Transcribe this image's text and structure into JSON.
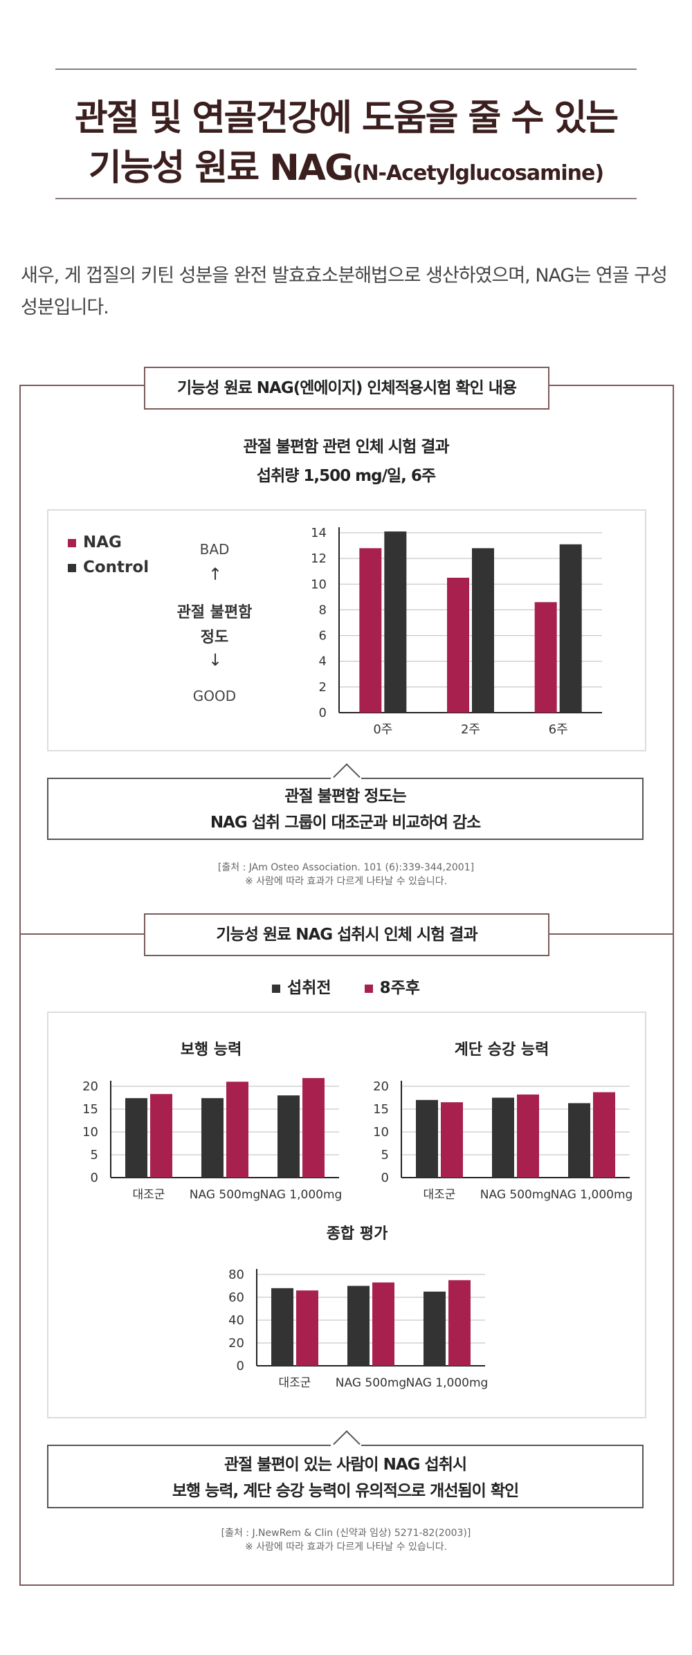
{
  "header": {
    "title_line1": "관절 및 연골건강에 도움을 줄 수 있는",
    "title_line2_main": "기능성 원료 NAG",
    "title_line2_sub": "(N-Acetylglucosamine)"
  },
  "intro": "새우, 게 껍질의 키틴 성분을 완전 발효효소분해법으로 생산하였으며, NAG는 연골 구성성분입니다.",
  "section1": {
    "box_label": "기능성 원료 NAG(엔에이지) 인체적용시험 확인 내용",
    "heading1": "관절 불편함 관련 인체 시험 결과",
    "heading2": "섭취량 1,500 mg/일, 6주",
    "side_top": "BAD",
    "side_mid1": "관절 불편함",
    "side_mid2": "정도",
    "side_bottom": "GOOD",
    "callout1": "관절 불편함 정도는",
    "callout2": "NAG 섭취 그룹이 대조군과 비교하여 감소",
    "source1": "[출처 : JAm Osteo Association. 101 (6):339-344,2001]",
    "source2": "※ 사람에 따라 효과가 다르게 나타날 수 있습니다."
  },
  "section2": {
    "box_label": "기능성 원료 NAG 섭취시 인체 시험 결과",
    "callout1": "관절 불편이 있는 사람이 NAG 섭취시",
    "callout2": "보행 능력, 계단 승강 능력이 유의적으로 개선됨이 확인",
    "source1": "[출처 : J.NewRem & Clin (신약과 임상) 5271-82(2003)]",
    "source2": "※ 사람에 따라 효과가 다르게 나타날 수 있습니다."
  },
  "colors": {
    "accent": "#a8214e",
    "dark": "#333333"
  },
  "chart_data": [
    {
      "type": "bar",
      "title": "",
      "categories": [
        "0주",
        "2주",
        "6주"
      ],
      "series": [
        {
          "name": "NAG",
          "values": [
            12.8,
            10.5,
            8.6
          ],
          "color": "#a8214e"
        },
        {
          "name": "Control",
          "values": [
            14.1,
            12.8,
            13.1
          ],
          "color": "#333333"
        }
      ],
      "ylim": [
        0,
        14
      ],
      "yticks": [
        "0",
        "2",
        "4",
        "6",
        "8",
        "10",
        "12",
        "14"
      ],
      "legend": "top-left"
    },
    {
      "type": "bar",
      "title": "보행 능력",
      "categories": [
        "대조군",
        "NAG 500mg",
        "NAG 1,000mg"
      ],
      "series": [
        {
          "name": "섭취전",
          "values": [
            17.4,
            17.4,
            18
          ],
          "color": "#333333"
        },
        {
          "name": "8주후",
          "values": [
            18.3,
            21,
            21.8
          ],
          "color": "#a8214e"
        }
      ],
      "ylim": [
        0,
        20
      ],
      "yticks": [
        "0",
        "5",
        "10",
        "15",
        "20"
      ],
      "legend": "top"
    },
    {
      "type": "bar",
      "title": "계단 승강 능력",
      "categories": [
        "대조군",
        "NAG 500mg",
        "NAG 1,000mg"
      ],
      "series": [
        {
          "name": "섭취전",
          "values": [
            17,
            17.5,
            16.3
          ],
          "color": "#333333"
        },
        {
          "name": "8주후",
          "values": [
            16.5,
            18.2,
            18.7
          ],
          "color": "#a8214e"
        }
      ],
      "ylim": [
        0,
        20
      ],
      "yticks": [
        "0",
        "5",
        "10",
        "15",
        "20"
      ],
      "legend": "top"
    },
    {
      "type": "bar",
      "title": "종합 평가",
      "categories": [
        "대조군",
        "NAG 500mg",
        "NAG 1,000mg"
      ],
      "series": [
        {
          "name": "섭취전",
          "values": [
            68,
            70,
            65
          ],
          "color": "#333333"
        },
        {
          "name": "8주후",
          "values": [
            66,
            73,
            75
          ],
          "color": "#a8214e"
        }
      ],
      "ylim": [
        0,
        80
      ],
      "yticks": [
        "0",
        "20",
        "40",
        "60",
        "80"
      ],
      "legend": "top"
    }
  ]
}
